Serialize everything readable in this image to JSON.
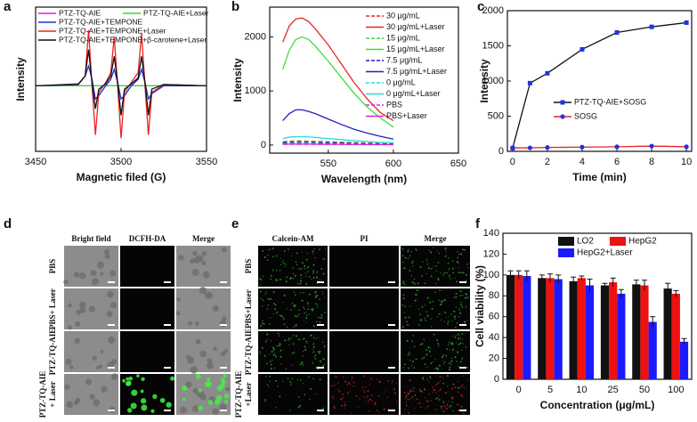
{
  "chart_data": [
    {
      "type": "line",
      "panel": "a",
      "xlabel": "Magnetic filed (G)",
      "ylabel": "Intensity",
      "x": [
        3450,
        3475,
        3479,
        3481,
        3483,
        3485,
        3487,
        3491,
        3494,
        3496,
        3498,
        3500,
        3502,
        3506,
        3510,
        3512,
        3514,
        3516,
        3518,
        3525,
        3550
      ],
      "xlim": [
        3450,
        3550
      ],
      "xticks": [
        3450,
        3500,
        3550
      ],
      "ylim": [
        -1,
        1.2
      ],
      "series": [
        {
          "name": "PTZ-TQ-AIE",
          "color": "#e020e0",
          "values": [
            0,
            0,
            0,
            0,
            0,
            0,
            0,
            0,
            0,
            0,
            0,
            0,
            0,
            0,
            0,
            0,
            0,
            0,
            0,
            0,
            0
          ]
        },
        {
          "name": "PTZ-TQ-AIE+Laser",
          "color": "#33dd33",
          "values": [
            0,
            0,
            0,
            0,
            0,
            0,
            0,
            0,
            0,
            0,
            0,
            0,
            0,
            0,
            0,
            0,
            0,
            0,
            0,
            0,
            0
          ]
        },
        {
          "name": "PTZ-TQ-AIE+TEMPONE",
          "color": "#2030d0",
          "values": [
            0,
            0.03,
            0.15,
            0.3,
            0.1,
            -0.2,
            -0.15,
            0,
            0.1,
            0.25,
            0.05,
            -0.2,
            -0.15,
            0,
            0.1,
            0.25,
            0.05,
            -0.2,
            -0.12,
            0,
            0
          ]
        },
        {
          "name": "PTZ-TQ-AIE+TEMPONE+Laser",
          "color": "#ee2222",
          "values": [
            0,
            0.02,
            0.15,
            0.85,
            0,
            -0.75,
            -0.1,
            0.05,
            0.2,
            0.75,
            0,
            -0.8,
            -0.1,
            0.05,
            0.2,
            0.8,
            0,
            -0.75,
            -0.1,
            0.02,
            0
          ]
        },
        {
          "name": "PTZ-TQ-AIE+TEMPONE+β-carotene+Laser",
          "color": "#111111",
          "values": [
            0,
            0.02,
            0.15,
            0.55,
            0.05,
            -0.35,
            -0.05,
            0.03,
            0.15,
            0.45,
            0.05,
            -0.45,
            -0.05,
            0.03,
            0.12,
            0.45,
            0.05,
            -0.45,
            -0.05,
            0.02,
            0
          ]
        }
      ]
    },
    {
      "type": "line",
      "panel": "b",
      "xlabel": "Wavelength (nm)",
      "ylabel": "Intensity",
      "x": [
        515,
        520,
        525,
        530,
        535,
        540,
        550,
        560,
        570,
        580,
        590,
        600
      ],
      "xlim": [
        505,
        650
      ],
      "xticks": [
        550,
        600,
        650
      ],
      "ylim": [
        -150,
        2550
      ],
      "yticks": [
        0,
        1000,
        2000
      ],
      "series": [
        {
          "name": "30 μg/mL",
          "color": "#e8262a",
          "dashed": true,
          "values": [
            60,
            70,
            75,
            75,
            72,
            68,
            60,
            52,
            45,
            38,
            32,
            28
          ]
        },
        {
          "name": "30 μg/mL+Laser",
          "color": "#e8262a",
          "values": [
            1900,
            2200,
            2330,
            2350,
            2280,
            2150,
            1850,
            1500,
            1150,
            850,
            600,
            450
          ]
        },
        {
          "name": "15 μg/mL",
          "color": "#3ddc3d",
          "dashed": true,
          "values": [
            50,
            58,
            62,
            62,
            60,
            56,
            50,
            44,
            38,
            32,
            28,
            24
          ]
        },
        {
          "name": "15 μg/mL+Laser",
          "color": "#3ddc3d",
          "values": [
            1400,
            1750,
            1950,
            2000,
            1950,
            1830,
            1550,
            1250,
            950,
            700,
            500,
            330
          ]
        },
        {
          "name": "7.5 μg/mL",
          "color": "#2020c0",
          "dashed": true,
          "values": [
            40,
            46,
            50,
            50,
            48,
            45,
            40,
            35,
            30,
            26,
            22,
            20
          ]
        },
        {
          "name": "7.5 μg/mL+Laser",
          "color": "#2020c0",
          "values": [
            450,
            580,
            650,
            650,
            620,
            580,
            480,
            380,
            290,
            220,
            160,
            110
          ]
        },
        {
          "name": "0 μg/mL",
          "color": "#22dddd",
          "dashed": true,
          "values": [
            20,
            22,
            24,
            24,
            23,
            22,
            20,
            18,
            16,
            14,
            12,
            10
          ]
        },
        {
          "name": "0 μg/mL+Laser",
          "color": "#22dddd",
          "values": [
            120,
            145,
            155,
            155,
            150,
            140,
            120,
            100,
            80,
            65,
            50,
            40
          ]
        },
        {
          "name": "PBS",
          "color": "#e020e0",
          "dashed": true,
          "values": [
            10,
            12,
            13,
            13,
            12,
            12,
            11,
            10,
            9,
            8,
            7,
            6
          ]
        },
        {
          "name": "PBS+Laser",
          "color": "#e020e0",
          "values": [
            15,
            17,
            18,
            18,
            17,
            16,
            14,
            12,
            10,
            9,
            8,
            7
          ]
        }
      ]
    },
    {
      "type": "line",
      "panel": "c",
      "xlabel": "Time (min)",
      "ylabel": "Intensity",
      "x": [
        0,
        1,
        2,
        4,
        6,
        8,
        10
      ],
      "xlim": [
        -0.3,
        10.3
      ],
      "xticks": [
        0,
        2,
        4,
        6,
        8,
        10
      ],
      "ylim": [
        0,
        2000
      ],
      "yticks": [
        0,
        500,
        1000,
        1500,
        2000
      ],
      "series": [
        {
          "name": "PTZ-TQ-AIE+SOSG",
          "color": "#111111",
          "marker": "square",
          "marker_color": "#2233dd",
          "values": [
            45,
            970,
            1110,
            1450,
            1690,
            1770,
            1830
          ]
        },
        {
          "name": "SOSG",
          "color": "#ee2222",
          "marker": "circle",
          "marker_color": "#2233dd",
          "values": [
            50,
            50,
            55,
            60,
            65,
            75,
            65
          ]
        }
      ]
    },
    {
      "type": "bar",
      "panel": "f",
      "xlabel": "Concentration (μg/mL)",
      "ylabel": "Cell viability (%)",
      "categories": [
        "0",
        "5",
        "10",
        "25",
        "50",
        "100"
      ],
      "ylim": [
        0,
        140
      ],
      "yticks": [
        0,
        20,
        40,
        60,
        80,
        100,
        120,
        140
      ],
      "series": [
        {
          "name": "LO2",
          "color": "#111111",
          "values": [
            100,
            97,
            94,
            90,
            91,
            87
          ],
          "errors": [
            4,
            3,
            4,
            2,
            4,
            5
          ]
        },
        {
          "name": "HepG2",
          "color": "#ee1111",
          "values": [
            100,
            97,
            97,
            93,
            90,
            82
          ],
          "errors": [
            4,
            4,
            2,
            4,
            5,
            3
          ]
        },
        {
          "name": "HepG2+Laser",
          "color": "#1a1aff",
          "values": [
            99,
            96,
            90,
            82,
            55,
            36
          ],
          "errors": [
            5,
            4,
            6,
            4,
            5,
            3
          ]
        }
      ]
    }
  ],
  "figures": [
    {
      "panel": "d",
      "column_headers": [
        "Bright field",
        "DCFH-DA",
        "Merge"
      ],
      "row_labels": [
        [
          "PBS"
        ],
        [
          "PBS+ Laser"
        ],
        [
          "PTZ-TQ-AIE"
        ],
        [
          "PTZ-TQ-AIE",
          "+ Laser"
        ]
      ]
    },
    {
      "panel": "e",
      "column_headers": [
        "Calcein-AM",
        "PI",
        "Merge"
      ],
      "row_labels": [
        [
          "PBS"
        ],
        [
          "PBS+Laser"
        ],
        [
          "PTZ-TQ-AIE"
        ],
        [
          "PTZ-TQ-AIE",
          "+Laser"
        ]
      ]
    }
  ]
}
